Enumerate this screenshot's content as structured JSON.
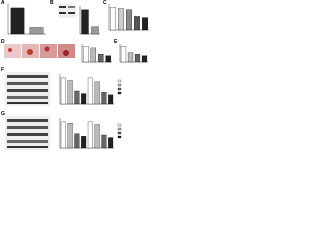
{
  "panels": [
    {
      "label": "A",
      "values": [
        1.0,
        0.25
      ],
      "colors": [
        "#222222",
        "#9a9a9a"
      ]
    },
    {
      "label": "B",
      "values": [
        1.0,
        0.3
      ],
      "colors": [
        "#222222",
        "#9a9a9a"
      ]
    },
    {
      "label": "C",
      "values": [
        1.0,
        0.95,
        0.9,
        0.6,
        0.55
      ],
      "colors": [
        "#ffffff",
        "#cccccc",
        "#888888",
        "#555555",
        "#222222"
      ]
    },
    {
      "label": "D",
      "values": [
        1.0,
        0.9,
        0.5,
        0.4
      ],
      "colors": [
        "#ffffff",
        "#bbbbbb",
        "#666666",
        "#222222"
      ]
    },
    {
      "label": "E",
      "values": [
        1.0,
        0.6,
        0.5,
        0.4
      ],
      "colors": [
        "#ffffff",
        "#bbbbbb",
        "#666666",
        "#222222"
      ]
    },
    {
      "label": "F",
      "values": [
        1.0,
        0.9,
        0.5,
        0.4,
        1.0,
        0.85,
        0.45,
        0.35
      ],
      "colors": [
        "#ffffff",
        "#bbbbbb",
        "#666666",
        "#222222"
      ]
    },
    {
      "label": "G",
      "values": [
        1.0,
        0.95,
        0.55,
        0.45,
        1.0,
        0.9,
        0.5,
        0.4
      ],
      "colors": [
        "#ffffff",
        "#bbbbbb",
        "#666666",
        "#222222"
      ]
    }
  ]
}
